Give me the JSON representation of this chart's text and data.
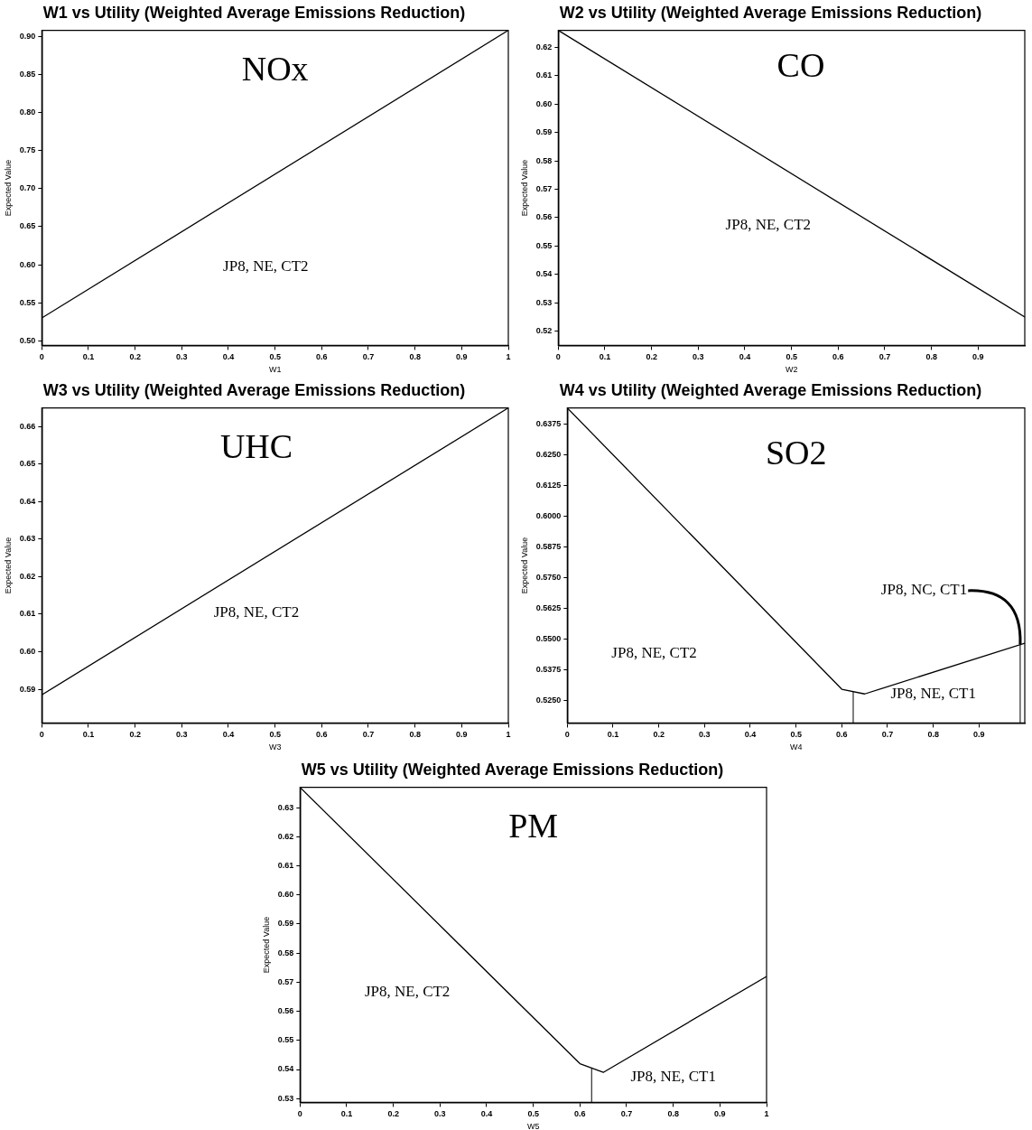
{
  "chart_data": [
    {
      "type": "line",
      "title": "W1 vs Utility (Weighted Average Emissions Reduction)",
      "xlabel": "W1",
      "ylabel": "Expected Value",
      "x": [
        0,
        1
      ],
      "series": [
        {
          "color": "#000000",
          "values": [
            0.53,
            0.908
          ]
        }
      ],
      "xlim": [
        0,
        1
      ],
      "ylim": [
        0.494,
        0.908
      ],
      "xticks": [
        0,
        0.1,
        0.2,
        0.3,
        0.4,
        0.5,
        0.6,
        0.7,
        0.8,
        0.9,
        1
      ],
      "yticks": [
        {
          "value": 0.5,
          "label": "0.50"
        },
        {
          "value": 0.55,
          "label": "0.55"
        },
        {
          "value": 0.6,
          "label": "0.60"
        },
        {
          "value": 0.65,
          "label": "0.65"
        },
        {
          "value": 0.7,
          "label": "0.70"
        },
        {
          "value": 0.75,
          "label": "0.75"
        },
        {
          "value": 0.8,
          "label": "0.80"
        },
        {
          "value": 0.85,
          "label": "0.85"
        },
        {
          "value": 0.9,
          "label": "0.90"
        }
      ],
      "annotations": [
        "NOx",
        "JP8, NE, CT2"
      ],
      "grid": false,
      "legend": false,
      "marker": "none",
      "line_style": "solid"
    },
    {
      "type": "line",
      "title": "W2 vs Utility (Weighted Average Emissions Reduction)",
      "xlabel": "W2",
      "ylabel": "Expected Value",
      "x": [
        0,
        1
      ],
      "series": [
        {
          "color": "#000000",
          "values": [
            0.626,
            0.525
          ]
        }
      ],
      "xlim": [
        0,
        1
      ],
      "ylim": [
        0.515,
        0.626
      ],
      "xticks": [
        0,
        0.1,
        0.2,
        0.3,
        0.4,
        0.5,
        0.6,
        0.7,
        0.8,
        0.9
      ],
      "yticks": [
        {
          "value": 0.52,
          "label": "0.52"
        },
        {
          "value": 0.53,
          "label": "0.53"
        },
        {
          "value": 0.54,
          "label": "0.54"
        },
        {
          "value": 0.55,
          "label": "0.55"
        },
        {
          "value": 0.56,
          "label": "0.56"
        },
        {
          "value": 0.57,
          "label": "0.57"
        },
        {
          "value": 0.58,
          "label": "0.58"
        },
        {
          "value": 0.59,
          "label": "0.59"
        },
        {
          "value": 0.6,
          "label": "0.60"
        },
        {
          "value": 0.61,
          "label": "0.61"
        },
        {
          "value": 0.62,
          "label": "0.62"
        }
      ],
      "annotations": [
        "CO",
        "JP8, NE, CT2"
      ],
      "grid": false,
      "legend": false,
      "marker": "none",
      "line_style": "solid"
    },
    {
      "type": "line",
      "title": "W3 vs Utility (Weighted Average Emissions Reduction)",
      "xlabel": "W3",
      "ylabel": "Expected Value",
      "x": [
        0,
        1
      ],
      "series": [
        {
          "color": "#000000",
          "values": [
            0.5885,
            0.665
          ]
        }
      ],
      "xlim": [
        0,
        1
      ],
      "ylim": [
        0.581,
        0.665
      ],
      "xticks": [
        0,
        0.1,
        0.2,
        0.3,
        0.4,
        0.5,
        0.6,
        0.7,
        0.8,
        0.9,
        1
      ],
      "yticks": [
        {
          "value": 0.59,
          "label": "0.59"
        },
        {
          "value": 0.6,
          "label": "0.60"
        },
        {
          "value": 0.61,
          "label": "0.61"
        },
        {
          "value": 0.62,
          "label": "0.62"
        },
        {
          "value": 0.63,
          "label": "0.63"
        },
        {
          "value": 0.64,
          "label": "0.64"
        },
        {
          "value": 0.65,
          "label": "0.65"
        },
        {
          "value": 0.66,
          "label": "0.66"
        }
      ],
      "annotations": [
        "UHC",
        "JP8, NE, CT2"
      ],
      "grid": false,
      "legend": false,
      "marker": "none",
      "line_style": "solid"
    },
    {
      "type": "line",
      "title": "W4 vs Utility (Weighted Average Emissions Reduction)",
      "xlabel": "W4",
      "ylabel": "Expected Value",
      "x": [
        0,
        0.6,
        0.65,
        1
      ],
      "series": [
        {
          "color": "#000000",
          "values": [
            0.644,
            0.5297,
            0.5278,
            0.5484
          ]
        }
      ],
      "xlim": [
        0,
        1
      ],
      "ylim": [
        0.516,
        0.644
      ],
      "xticks": [
        0,
        0.1,
        0.2,
        0.3,
        0.4,
        0.5,
        0.6,
        0.7,
        0.8,
        0.9
      ],
      "yticks": [
        {
          "value": 0.525,
          "label": "0.5250"
        },
        {
          "value": 0.5375,
          "label": "0.5375"
        },
        {
          "value": 0.55,
          "label": "0.5500"
        },
        {
          "value": 0.5625,
          "label": "0.5625"
        },
        {
          "value": 0.575,
          "label": "0.5750"
        },
        {
          "value": 0.5875,
          "label": "0.5875"
        },
        {
          "value": 0.6,
          "label": "0.6000"
        },
        {
          "value": 0.6125,
          "label": "0.6125"
        },
        {
          "value": 0.625,
          "label": "0.6250"
        },
        {
          "value": 0.6375,
          "label": "0.6375"
        }
      ],
      "annotations": [
        "SO2",
        "JP8, NE, CT2",
        "JP8, NE, CT1",
        {
          "text": "JP8, NC, CT1",
          "x": 0.99,
          "y": 0.548
        }
      ],
      "ref_lines": [
        {
          "axis": "x",
          "value": 0.625
        },
        {
          "axis": "x",
          "value": 0.99
        }
      ],
      "grid": false,
      "legend": false,
      "marker": "none",
      "line_style": "solid"
    },
    {
      "type": "line",
      "title": "W5 vs Utility (Weighted Average Emissions Reduction)",
      "xlabel": "W5",
      "ylabel": "Expected Value",
      "x": [
        0,
        0.6,
        0.65,
        1
      ],
      "series": [
        {
          "color": "#000000",
          "values": [
            0.637,
            0.542,
            0.539,
            0.572
          ]
        }
      ],
      "xlim": [
        0,
        1
      ],
      "ylim": [
        0.5287,
        0.637
      ],
      "xticks": [
        0,
        0.1,
        0.2,
        0.3,
        0.4,
        0.5,
        0.6,
        0.7,
        0.8,
        0.9,
        1
      ],
      "yticks": [
        {
          "value": 0.53,
          "label": "0.53"
        },
        {
          "value": 0.54,
          "label": "0.54"
        },
        {
          "value": 0.55,
          "label": "0.55"
        },
        {
          "value": 0.56,
          "label": "0.56"
        },
        {
          "value": 0.57,
          "label": "0.57"
        },
        {
          "value": 0.58,
          "label": "0.58"
        },
        {
          "value": 0.59,
          "label": "0.59"
        },
        {
          "value": 0.6,
          "label": "0.60"
        },
        {
          "value": 0.61,
          "label": "0.61"
        },
        {
          "value": 0.62,
          "label": "0.62"
        },
        {
          "value": 0.63,
          "label": "0.63"
        }
      ],
      "annotations": [
        "PM",
        "JP8, NE, CT2",
        "JP8, NE, CT1"
      ],
      "ref_lines": [
        {
          "axis": "x",
          "value": 0.625
        }
      ],
      "grid": false,
      "legend": false,
      "marker": "none",
      "line_style": "solid"
    }
  ]
}
